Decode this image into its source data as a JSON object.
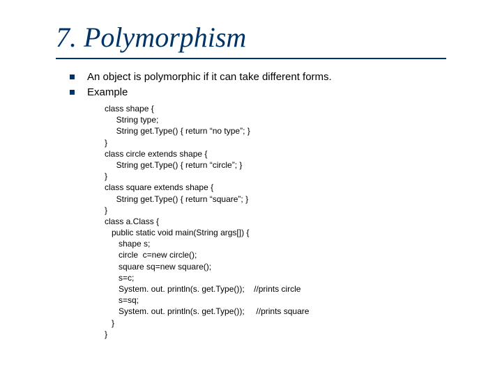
{
  "slide": {
    "title": "7. Polymorphism",
    "title_color": "#003366",
    "title_fontsize": 40,
    "underline_color": "#003366",
    "bullets": [
      {
        "text": "An object is polymorphic if it can take different forms."
      },
      {
        "text": "Example"
      }
    ],
    "bullet_marker_color": "#003366",
    "bullet_fontsize": 15,
    "code_fontsize": 12,
    "code_lines": [
      "class shape {",
      "     String type;",
      "     String get.Type() { return “no type”; }",
      "}",
      "class circle extends shape {",
      "     String get.Type() { return “circle”; }",
      "}",
      "class square extends shape {",
      "     String get.Type() { return “square”; }",
      "}",
      "class a.Class {",
      "   public static void main(String args[]) {",
      "      shape s;",
      "      circle  c=new circle();",
      "      square sq=new square();",
      "      s=c;",
      "      System. out. println(s. get.Type());    //prints circle",
      "      s=sq;",
      "      System. out. println(s. get.Type());     //prints square",
      "   }",
      "}"
    ]
  }
}
